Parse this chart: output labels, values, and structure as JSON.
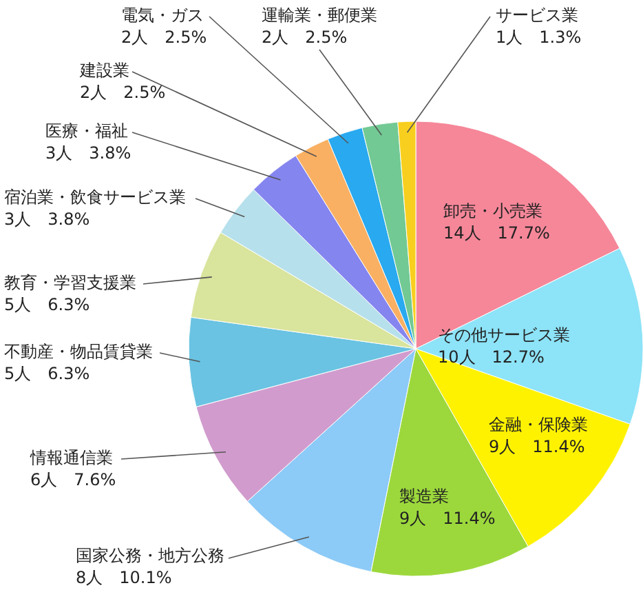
{
  "chart_data": {
    "type": "pie",
    "categories": [
      "卸売・小売業",
      "その他サービス業",
      "金融・保険業",
      "製造業",
      "国家公務・地方公務",
      "情報通信業",
      "不動産・物品賃貸業",
      "教育・学習支援業",
      "宿泊業・飲食サービス業",
      "医療・福祉",
      "建設業",
      "電気・ガス",
      "運輸業・郵便業",
      "サービス業"
    ],
    "values": [
      14,
      10,
      9,
      9,
      8,
      6,
      5,
      5,
      3,
      3,
      2,
      2,
      2,
      1
    ],
    "value_labels": [
      "14人　17.7%",
      "10人　12.7%",
      "9人　11.4%",
      "9人　11.4%",
      "8人　10.1%",
      "6人　7.6%",
      "5人　6.3%",
      "5人　6.3%",
      "3人　3.8%",
      "3人　3.8%",
      "2人　2.5%",
      "2人　2.5%",
      "2人　2.5%",
      "1人　1.3%"
    ],
    "colors": [
      "#f58799",
      "#8de3f7",
      "#fff200",
      "#9cd83c",
      "#8ccaf7",
      "#d19ccd",
      "#6ac3e2",
      "#d9e49c",
      "#b6e0ec",
      "#8585f0",
      "#f9b062",
      "#29a9ef",
      "#72c993",
      "#f8cf1e"
    ]
  }
}
